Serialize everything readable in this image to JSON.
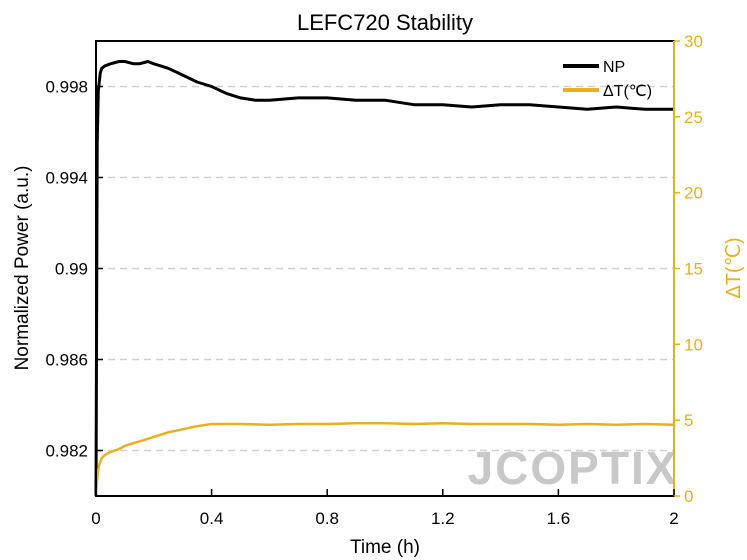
{
  "chart_data": {
    "type": "line",
    "title": "LEFC720 Stability",
    "xlabel": "Time (h)",
    "ylabel": "Normalized Power (a.u.)",
    "y2label": "ΔT(℃)",
    "xlim": [
      0,
      2
    ],
    "ylim": [
      0.98,
      1.0
    ],
    "y2lim": [
      0,
      30
    ],
    "x_ticks": [
      0,
      0.4,
      0.8,
      1.2,
      1.6,
      2
    ],
    "x_tick_labels": [
      "0",
      "0.4",
      "0.8",
      "1.2",
      "1.6",
      "2"
    ],
    "y_ticks": [
      0.982,
      0.986,
      0.99,
      0.994,
      0.998
    ],
    "y_tick_labels": [
      "0.982",
      "0.986",
      "0.99",
      "0.994",
      "0.998"
    ],
    "y2_ticks": [
      0,
      5,
      10,
      15,
      20,
      25,
      30
    ],
    "y2_tick_labels": [
      "0",
      "5",
      "10",
      "15",
      "20",
      "25",
      "30"
    ],
    "grid": "horizontal dashed",
    "legend_position": "top-right",
    "series": [
      {
        "name": "NP",
        "axis": "left",
        "color": "#000000",
        "x": [
          0,
          0.004,
          0.008,
          0.015,
          0.02,
          0.03,
          0.05,
          0.08,
          0.1,
          0.13,
          0.15,
          0.18,
          0.2,
          0.25,
          0.3,
          0.35,
          0.4,
          0.45,
          0.5,
          0.55,
          0.6,
          0.7,
          0.8,
          0.9,
          1.0,
          1.1,
          1.2,
          1.3,
          1.4,
          1.5,
          1.6,
          1.7,
          1.8,
          1.9,
          2.0
        ],
        "y": [
          0.98,
          0.9955,
          0.9978,
          0.9986,
          0.9988,
          0.9989,
          0.999,
          0.9991,
          0.9991,
          0.999,
          0.999,
          0.9991,
          0.999,
          0.9988,
          0.9985,
          0.9982,
          0.998,
          0.9977,
          0.9975,
          0.9974,
          0.9974,
          0.9975,
          0.9975,
          0.9974,
          0.9974,
          0.9972,
          0.9972,
          0.9971,
          0.9972,
          0.9972,
          0.9971,
          0.997,
          0.9971,
          0.997,
          0.997
        ]
      },
      {
        "name": "ΔT(℃)",
        "axis": "right",
        "color": "#E8B020",
        "x": [
          0,
          0.005,
          0.01,
          0.02,
          0.03,
          0.05,
          0.08,
          0.1,
          0.15,
          0.2,
          0.25,
          0.3,
          0.35,
          0.4,
          0.5,
          0.6,
          0.7,
          0.8,
          0.9,
          1.0,
          1.1,
          1.2,
          1.3,
          1.4,
          1.5,
          1.6,
          1.7,
          1.8,
          1.9,
          2.0
        ],
        "y": [
          0,
          1.3,
          2.0,
          2.5,
          2.7,
          2.9,
          3.1,
          3.3,
          3.6,
          3.9,
          4.2,
          4.4,
          4.6,
          4.75,
          4.75,
          4.7,
          4.75,
          4.75,
          4.8,
          4.8,
          4.75,
          4.8,
          4.75,
          4.75,
          4.75,
          4.7,
          4.75,
          4.7,
          4.75,
          4.7
        ]
      }
    ],
    "watermark": "JCOPTIX"
  }
}
